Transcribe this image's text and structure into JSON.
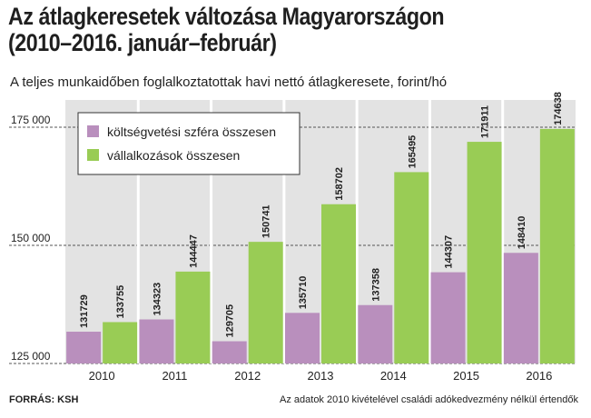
{
  "title_line1": "Az átlagkeresetek változása Magyarországon",
  "title_line2": "(2010–2016. január–február)",
  "subtitle": "A teljes munkaidőben foglalkoztatottak havi nettó átlagkeresete, forint/hó",
  "source": "FORRÁS: KSH",
  "footnote": "Az adatok 2010 kivételével családi adókedvezmény nélkül értendők",
  "colors": {
    "background": "#e3e3e3",
    "kozszfera": "#b98fbd",
    "vallalkozas": "#99cc55",
    "grid": "#555555"
  },
  "chart_data": {
    "type": "bar",
    "categories": [
      "2010",
      "2011",
      "2012",
      "2013",
      "2014",
      "2015",
      "2016"
    ],
    "series": [
      {
        "name": "költségvetési szféra összesen",
        "values": [
          131729,
          134323,
          129705,
          135710,
          137358,
          144307,
          148410
        ],
        "labels": [
          "131729",
          "134323",
          "129705",
          "135710",
          "137358",
          "144307",
          "148410"
        ]
      },
      {
        "name": "vállalkozások összesen",
        "values": [
          133755,
          144447,
          150741,
          158702,
          165495,
          171911,
          174638
        ],
        "labels": [
          "133755",
          "144447",
          "150741",
          "158702",
          "165495",
          "171911",
          "174638"
        ]
      }
    ],
    "yticks": [
      125000,
      150000,
      175000
    ],
    "ytick_labels": [
      "125 000",
      "150 000",
      "175 000"
    ],
    "ylim": [
      125000,
      175000
    ],
    "grid": true,
    "legend_position": "top-left"
  }
}
